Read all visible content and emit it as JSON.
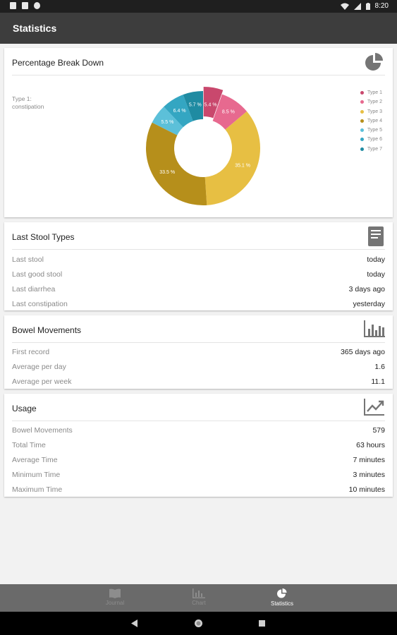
{
  "app": {
    "title": "Statistics"
  },
  "status_bar": {
    "time": "8:20",
    "left_icons": [
      "notification-icon",
      "sim-card-icon",
      "settings-icon"
    ],
    "right_icons": [
      "wifi-icon",
      "signal-icon",
      "battery-icon"
    ]
  },
  "breakdown": {
    "title": "Percentage Break Down",
    "selected_label": "Type 1:",
    "selected_category": "constipation"
  },
  "chart_data": {
    "type": "pie",
    "donut": true,
    "title": "",
    "legend_position": "right",
    "categories": [
      "Type 1",
      "Type 2",
      "Type 3",
      "Type 4",
      "Type 5",
      "Type 6",
      "Type 7"
    ],
    "values": [
      5.4,
      8.5,
      35.1,
      33.5,
      5.5,
      6.4,
      5.7
    ],
    "labels": [
      "5.4 %",
      "8.5 %",
      "35.1 %",
      "33.5 %",
      "5.5 %",
      "6.4 %",
      "5.7 %"
    ],
    "colors": [
      "#c9486d",
      "#e7698f",
      "#e7bf43",
      "#b68f1b",
      "#5cc0d9",
      "#34a6c2",
      "#1f8ba2"
    ],
    "selected_index": 0
  },
  "stool_types": {
    "title": "Last Stool Types",
    "rows": [
      {
        "label": "Last stool",
        "value": "today"
      },
      {
        "label": "Last good stool",
        "value": "today"
      },
      {
        "label": "Last diarrhea",
        "value": "3 days ago"
      },
      {
        "label": "Last constipation",
        "value": "yesterday"
      }
    ]
  },
  "bowel": {
    "title": "Bowel Movements",
    "rows": [
      {
        "label": "First record",
        "value": "365 days ago"
      },
      {
        "label": "Average per day",
        "value": "1.6"
      },
      {
        "label": "Average per week",
        "value": "11.1"
      }
    ]
  },
  "usage": {
    "title": "Usage",
    "rows": [
      {
        "label": "Bowel Movements",
        "value": "579"
      },
      {
        "label": "Total Time",
        "value": "63 hours"
      },
      {
        "label": "Average Time",
        "value": "7 minutes"
      },
      {
        "label": "Minimum Time",
        "value": "3 minutes"
      },
      {
        "label": "Maximum Time",
        "value": "10 minutes"
      }
    ]
  },
  "nav": {
    "items": [
      {
        "label": "Journal",
        "icon": "book-open-icon"
      },
      {
        "label": "Chart",
        "icon": "chart-icon"
      },
      {
        "label": "Statistics",
        "icon": "pie-chart-icon"
      }
    ],
    "active": "Statistics"
  },
  "colors": {
    "app_bar": "#3d3d3d",
    "bottom_nav": "#6a6a6a",
    "icon_gray": "#757575"
  }
}
